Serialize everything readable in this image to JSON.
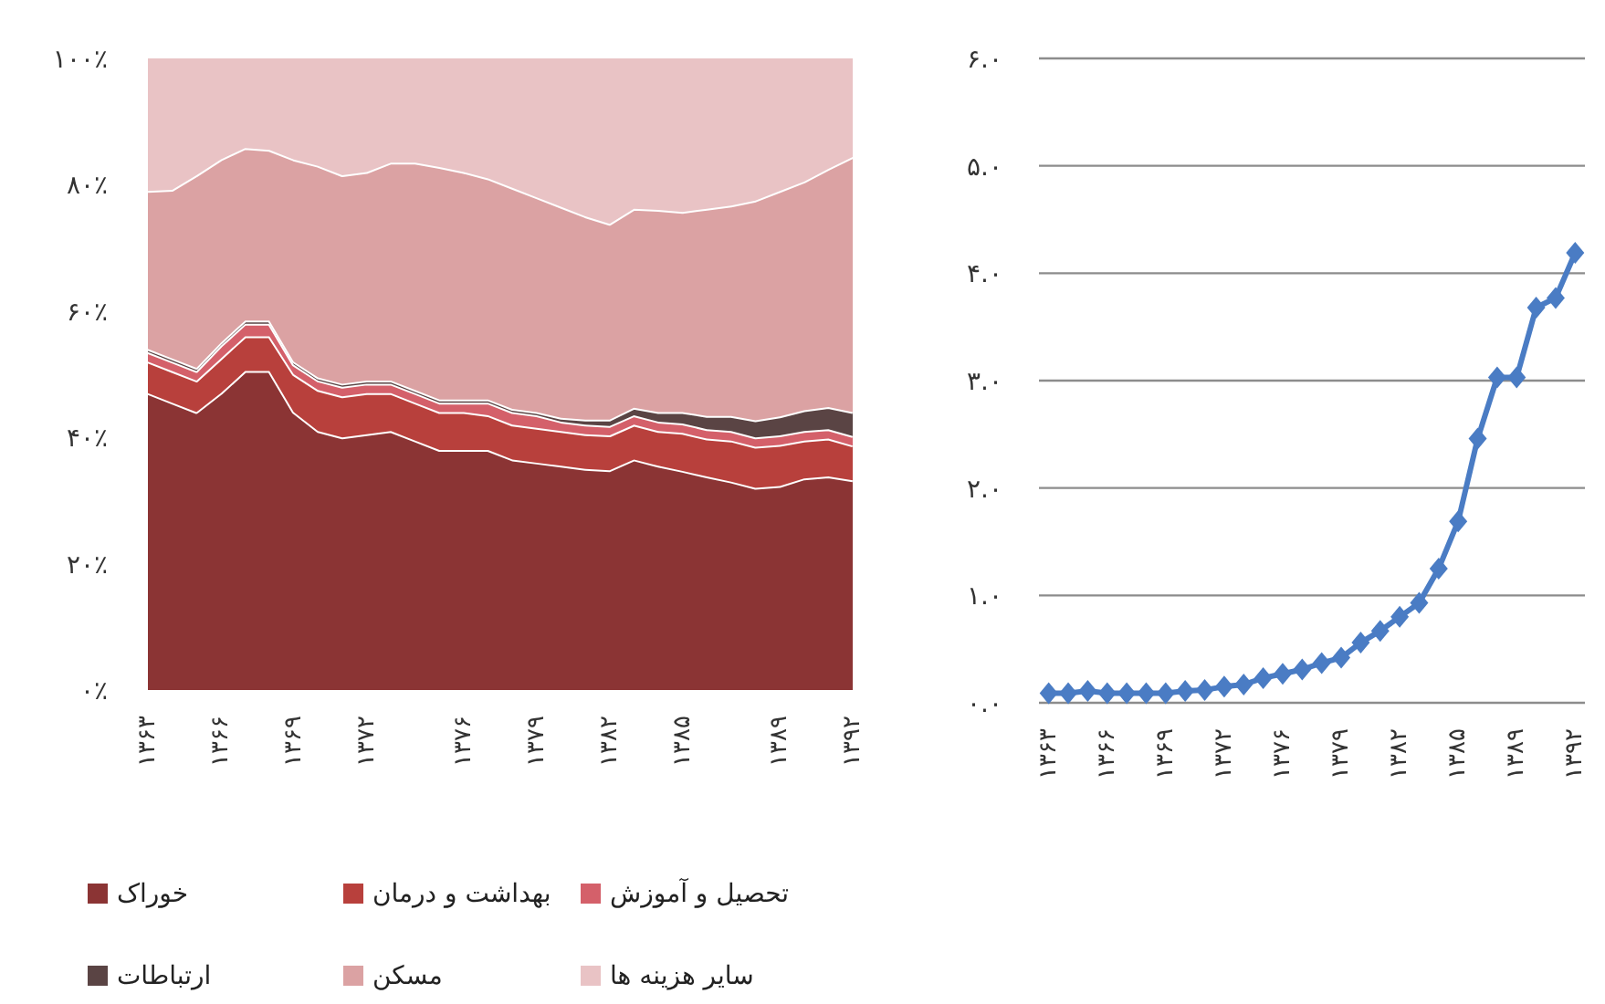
{
  "chart_data": [
    {
      "type": "area",
      "stacked": true,
      "legend": "bottom",
      "x": [
        1363,
        1364,
        1365,
        1366,
        1367,
        1368,
        1369,
        1370,
        1371,
        1372,
        1373,
        1374,
        1375,
        1376,
        1377,
        1378,
        1379,
        1380,
        1381,
        1382,
        1383,
        1384,
        1385,
        1386,
        1387,
        1388,
        1389,
        1390,
        1391,
        1392
      ],
      "xlim": [
        1363,
        1392
      ],
      "xticks": [
        {
          "value": 1363,
          "label": "۱۳۶۳"
        },
        {
          "value": 1366,
          "label": "۱۳۶۶"
        },
        {
          "value": 1369,
          "label": "۱۳۶۹"
        },
        {
          "value": 1372,
          "label": "۱۳۷۲"
        },
        {
          "value": 1376,
          "label": "۱۳۷۶"
        },
        {
          "value": 1379,
          "label": "۱۳۷۹"
        },
        {
          "value": 1382,
          "label": "۱۳۸۲"
        },
        {
          "value": 1385,
          "label": "۱۳۸۵"
        },
        {
          "value": 1389,
          "label": "۱۳۸۹"
        },
        {
          "value": 1392,
          "label": "۱۳۹۲"
        }
      ],
      "ylim": [
        0,
        100
      ],
      "yticks": [
        {
          "value": 0,
          "label": "۰٪"
        },
        {
          "value": 20,
          "label": "۲۰٪"
        },
        {
          "value": 40,
          "label": "۴۰٪"
        },
        {
          "value": 60,
          "label": "۶۰٪"
        },
        {
          "value": 80,
          "label": "۸۰٪"
        },
        {
          "value": 100,
          "label": "۱۰۰٪"
        }
      ],
      "series": [
        {
          "name": "خوراک",
          "color": "#8b3434",
          "values": [
            47,
            45.5,
            44,
            47,
            50.5,
            50.5,
            44,
            41,
            40,
            40.5,
            41,
            39.5,
            38,
            38,
            38,
            36.5,
            36,
            35.5,
            35,
            34.8,
            36.5,
            35.5,
            34.7,
            33.8,
            33,
            32,
            32.3,
            33.5,
            33.8,
            33.2
          ]
        },
        {
          "name": "بهداشت و درمان",
          "color": "#b8403c",
          "values": [
            5,
            5,
            5,
            5.5,
            5.5,
            5.5,
            6,
            6.5,
            6.5,
            6.5,
            6,
            6,
            6,
            6,
            5.5,
            5.5,
            5.5,
            5.5,
            5.5,
            5.5,
            5.5,
            5.5,
            6,
            6,
            6.5,
            6.5,
            6.5,
            6,
            6,
            5.5
          ]
        },
        {
          "name": "تحصیل و آموزش",
          "color": "#d4606a",
          "values": [
            1.5,
            1.5,
            1.5,
            2,
            2,
            2,
            1.5,
            1.5,
            1.5,
            1.5,
            1.5,
            1.5,
            1.5,
            1.5,
            2,
            2,
            2,
            1.5,
            1.5,
            1.5,
            1.5,
            1.5,
            1.5,
            1.5,
            1.5,
            1.5,
            1.5,
            1.5,
            1.5,
            1.5
          ]
        },
        {
          "name": "ارتباطات",
          "color": "#5a4444",
          "values": [
            0.5,
            0.5,
            0.5,
            0.5,
            0.5,
            0.5,
            0.5,
            0.5,
            0.5,
            0.5,
            0.5,
            0.5,
            0.5,
            0.5,
            0.5,
            0.5,
            0.5,
            0.6,
            0.8,
            1,
            1.2,
            1.5,
            1.8,
            2.1,
            2.4,
            2.7,
            3,
            3.3,
            3.5,
            3.8
          ]
        },
        {
          "name": "مسکن",
          "color": "#dba2a3",
          "values": [
            25,
            26.7,
            30.5,
            29,
            27.3,
            27,
            32,
            33.5,
            33,
            33,
            34.5,
            36,
            36.8,
            36,
            35,
            35,
            34,
            33.4,
            32.2,
            31,
            31.5,
            32,
            31.7,
            32.8,
            33.3,
            34.8,
            35.7,
            36.2,
            37.7,
            40.4
          ]
        },
        {
          "name": "سایر هزینه ها",
          "color": "#e9c3c5",
          "values": [
            21,
            20.8,
            18.5,
            16,
            14.2,
            14.5,
            16,
            17,
            18.5,
            18,
            16.5,
            16.5,
            17.2,
            18,
            19,
            20.5,
            22,
            23.5,
            25,
            26.2,
            23.8,
            24,
            24.3,
            23.8,
            23.3,
            22.5,
            21,
            19.5,
            17.5,
            15.6
          ]
        }
      ]
    },
    {
      "type": "line",
      "color": "#4a7cc4",
      "marker": "diamond",
      "line_style": "solid",
      "grid": "y",
      "categories": [
        "۱۳۶۳",
        null,
        null,
        "۱۳۶۶",
        null,
        null,
        "۱۳۶۹",
        null,
        null,
        "۱۳۷۲",
        null,
        null,
        "۱۳۷۶",
        null,
        null,
        "۱۳۷۹",
        null,
        null,
        "۱۳۸۲",
        null,
        null,
        "۱۳۸۵",
        null,
        null,
        "۱۳۸۹",
        null,
        null,
        "۱۳۹۲"
      ],
      "values": [
        0.09,
        0.09,
        0.11,
        0.09,
        0.09,
        0.09,
        0.09,
        0.11,
        0.12,
        0.15,
        0.17,
        0.23,
        0.27,
        0.31,
        0.37,
        0.42,
        0.56,
        0.67,
        0.8,
        0.93,
        1.25,
        1.69,
        2.46,
        3.03,
        3.03,
        3.68,
        3.77,
        4.19
      ],
      "ylim": [
        0,
        6
      ],
      "yticks": [
        {
          "value": 0,
          "label": "۰.۰"
        },
        {
          "value": 1,
          "label": "۱.۰"
        },
        {
          "value": 2,
          "label": "۲.۰"
        },
        {
          "value": 3,
          "label": "۳.۰"
        },
        {
          "value": 4,
          "label": "۴.۰"
        },
        {
          "value": 5,
          "label": "۵.۰"
        },
        {
          "value": 6,
          "label": "۶.۰"
        }
      ]
    }
  ]
}
